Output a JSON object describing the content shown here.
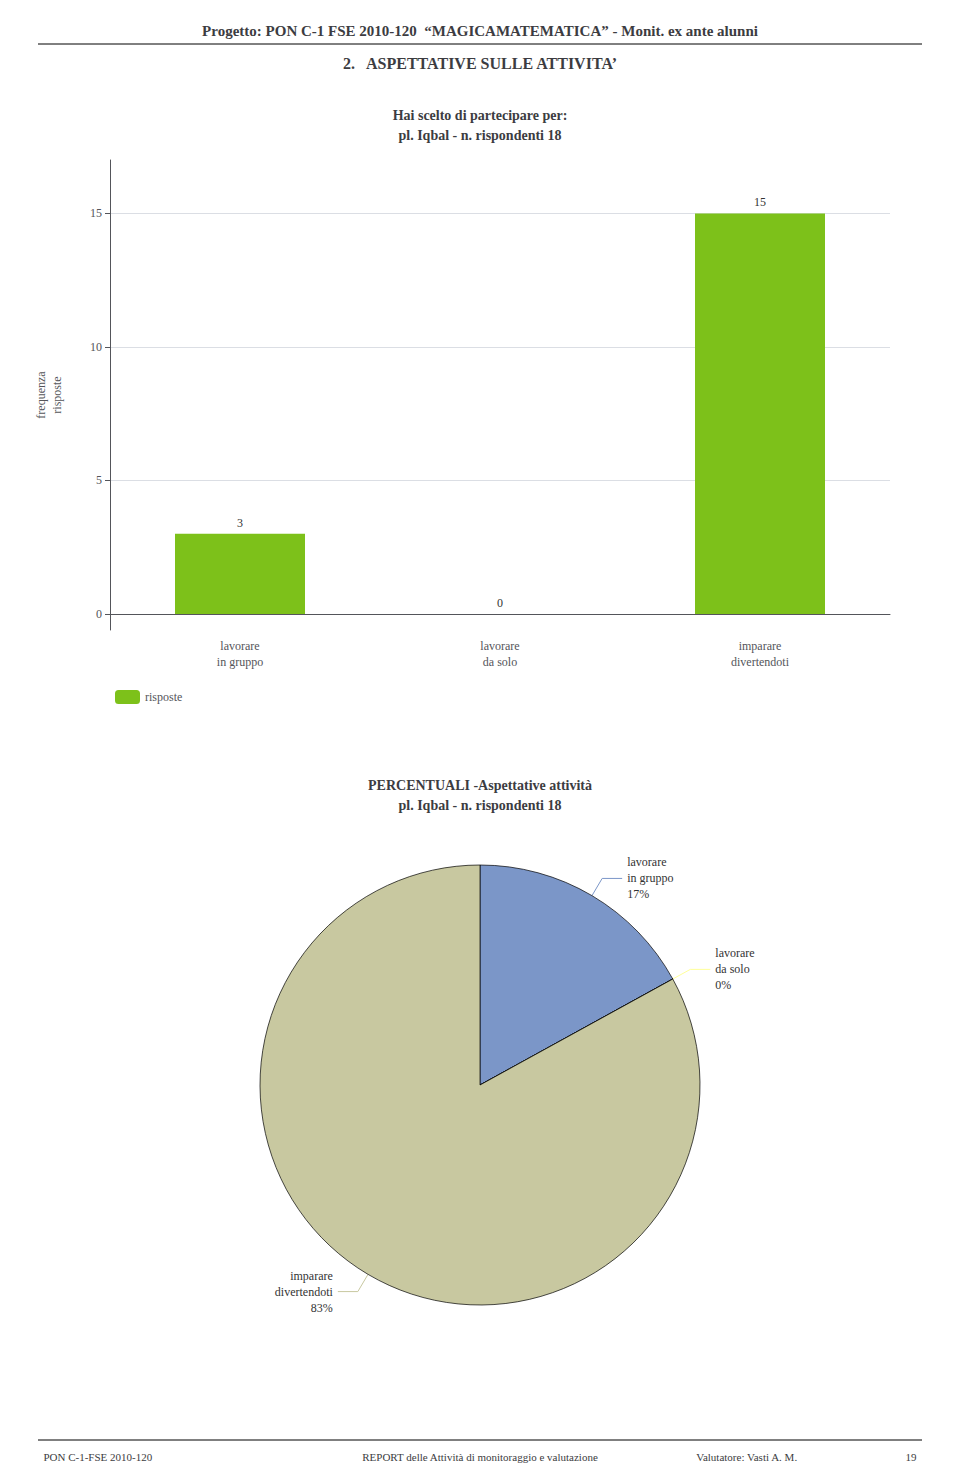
{
  "title": "Progetto: PON C-1 FSE 2010-120  “MAGICAMATEMATICA” - Monit. ex ante alunni",
  "subtitle": "2.   ASPETTATIVE SULLE ATTIVITA’",
  "annotations": [
    "PON C-1-FSE 2010-120",
    "REPORT delle Attività di monitoraggio e valutazione",
    "Valutatore: Vasti A. M.",
    "19"
  ],
  "chart_data": [
    {
      "type": "bar",
      "title": "Hai scelto di partecipare per:\npl. Iqbal - n. rispondenti 18",
      "categories": [
        "lavorare\nin gruppo",
        "lavorare\nda solo",
        "imparare\ndivertendoti"
      ],
      "series": [
        {
          "name": "risposte",
          "color": "#7DC11A",
          "values": [
            3,
            0,
            15
          ]
        }
      ],
      "ylabel": "frequenza\nrisposte",
      "ylim": [
        -0.6,
        17
      ],
      "yticks": [
        0,
        5,
        10,
        15
      ],
      "grid": true,
      "legend": "lower left",
      "data_labels": true
    },
    {
      "type": "pie",
      "title": "PERCENTUALI -Aspettative attività\npl. Iqbal - n. rispondenti 18",
      "categories": [
        "lavorare\nin gruppo",
        "lavorare\nda solo",
        "imparare\ndivertendoti"
      ],
      "values": [
        17,
        0,
        83
      ],
      "value_labels": [
        "17%",
        "0%",
        "83%"
      ],
      "colors": [
        "#7B96C8",
        "#FFFF99",
        "#C8C8A0"
      ]
    }
  ]
}
